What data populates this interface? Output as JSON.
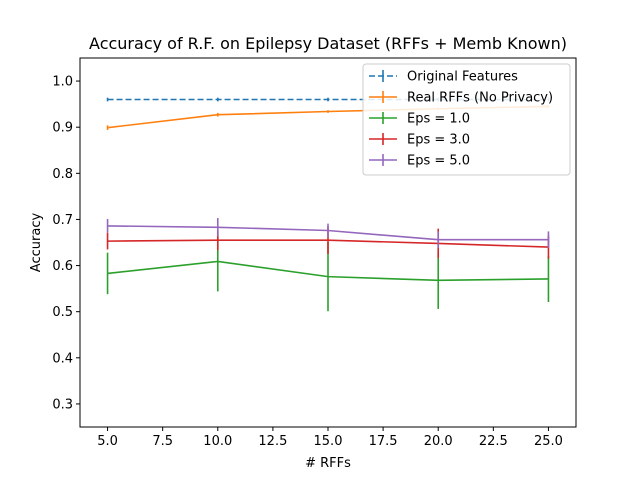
{
  "chart_data": {
    "type": "line",
    "title": "Accuracy of R.F. on Epilepsy Dataset (RFFs + Memb Known)",
    "xlabel": "# RFFs",
    "ylabel": "Accuracy",
    "xlim": [
      3.75,
      26.25
    ],
    "ylim": [
      0.25,
      1.05
    ],
    "xticks": [
      5.0,
      7.5,
      10.0,
      12.5,
      15.0,
      17.5,
      20.0,
      22.5,
      25.0
    ],
    "xtick_labels": [
      "5.0",
      "7.5",
      "10.0",
      "12.5",
      "15.0",
      "17.5",
      "20.0",
      "22.5",
      "25.0"
    ],
    "yticks": [
      0.3,
      0.4,
      0.5,
      0.6,
      0.7,
      0.8,
      0.9,
      1.0
    ],
    "ytick_labels": [
      "0.3",
      "0.4",
      "0.5",
      "0.6",
      "0.7",
      "0.8",
      "0.9",
      "1.0"
    ],
    "grid": false,
    "legend_position": "top-right",
    "series": [
      {
        "name": "Original Features",
        "color": "#1f77b4",
        "dashed": true,
        "x": [
          5,
          10,
          15,
          20,
          25
        ],
        "y": [
          0.96,
          0.96,
          0.96,
          0.96,
          0.96
        ],
        "err": [
          0.004,
          0.004,
          0.004,
          0.004,
          0.004
        ]
      },
      {
        "name": "Real RFFs (No Privacy)",
        "color": "#ff7f0e",
        "dashed": false,
        "x": [
          5,
          10,
          15,
          20,
          25
        ],
        "y": [
          0.899,
          0.927,
          0.934,
          0.94,
          0.945
        ],
        "err": [
          0.005,
          0.004,
          0.003,
          0.003,
          0.003
        ]
      },
      {
        "name": "Eps = 1.0",
        "color": "#2ca02c",
        "dashed": false,
        "x": [
          5,
          10,
          15,
          20,
          25
        ],
        "y": [
          0.583,
          0.609,
          0.576,
          0.568,
          0.571
        ],
        "err": [
          0.045,
          0.065,
          0.075,
          0.062,
          0.05
        ]
      },
      {
        "name": "Eps = 3.0",
        "color": "#d62728",
        "dashed": false,
        "x": [
          5,
          10,
          15,
          20,
          25
        ],
        "y": [
          0.653,
          0.655,
          0.655,
          0.648,
          0.64
        ],
        "err": [
          0.018,
          0.022,
          0.03,
          0.032,
          0.025
        ]
      },
      {
        "name": "Eps = 5.0",
        "color": "#9467bd",
        "dashed": false,
        "x": [
          5,
          10,
          15,
          20,
          25
        ],
        "y": [
          0.686,
          0.683,
          0.676,
          0.656,
          0.656
        ],
        "err": [
          0.015,
          0.02,
          0.015,
          0.018,
          0.018
        ]
      }
    ]
  }
}
